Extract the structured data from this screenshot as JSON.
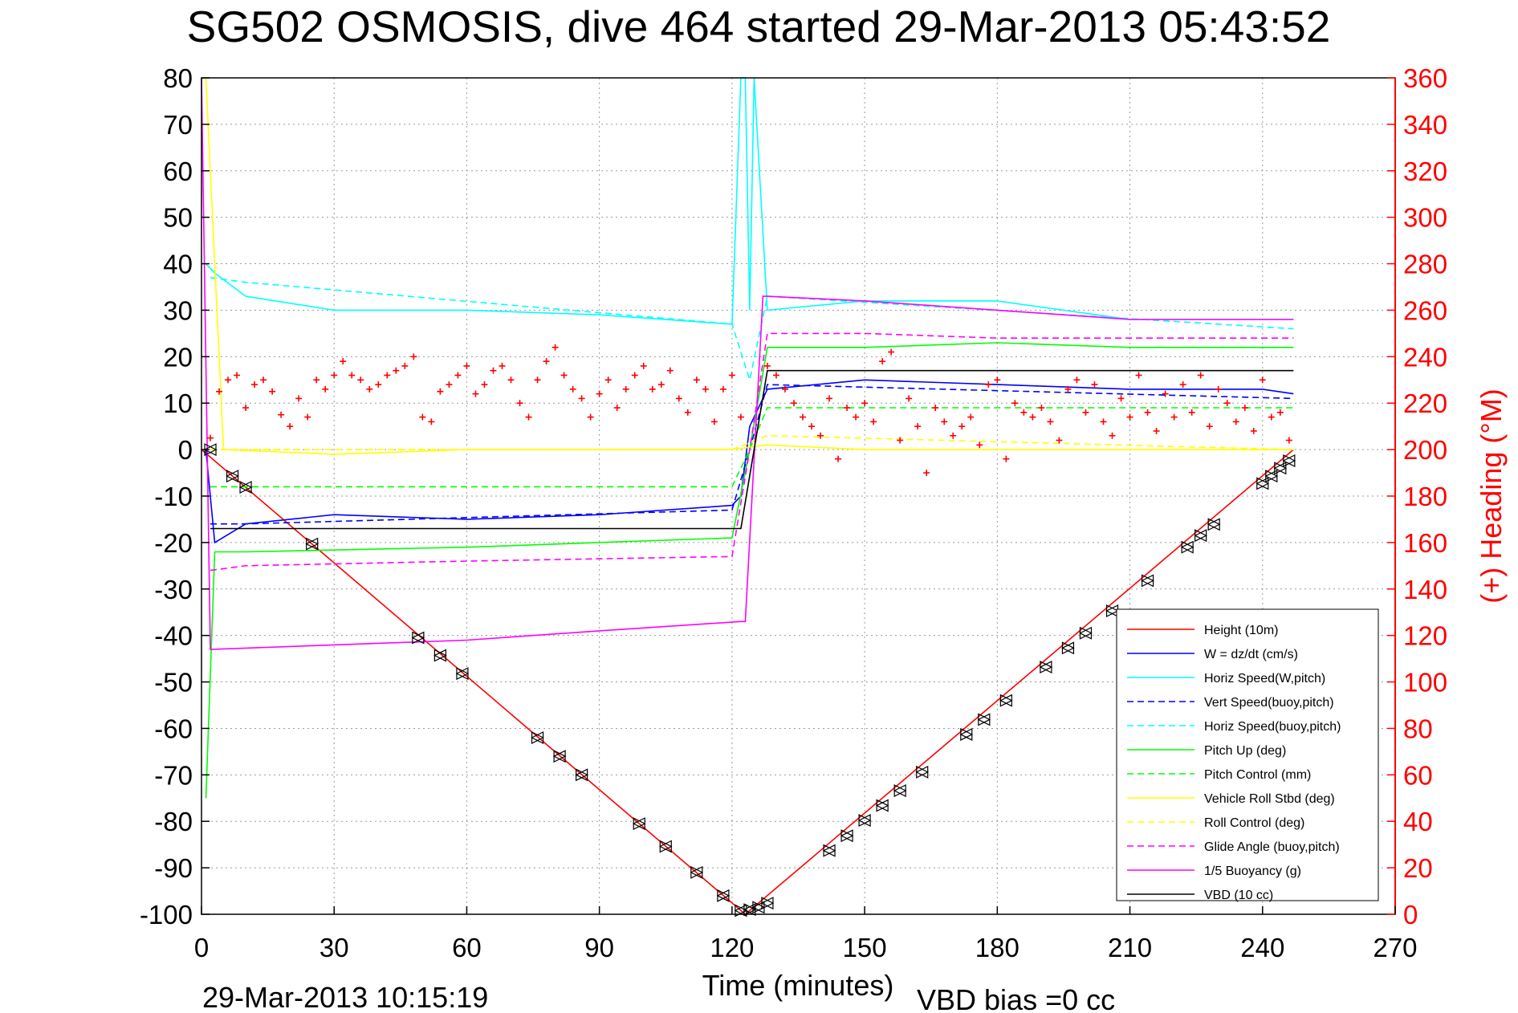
{
  "colors": {
    "height": "#ff0000",
    "w": "#0000ff",
    "horiz_speed": "#00ffff",
    "pitch": "#00ff00",
    "roll": "#ffff00",
    "glide": "#ff00ff",
    "buoyancy": "#ff00ff",
    "vbd": "#000000",
    "heading": "#ff0000",
    "marker": "#000000"
  },
  "chart_data": {
    "type": "line",
    "title": "SG502 OSMOSIS, dive 464 started 29-Mar-2013 05:43:52",
    "xlabel": "Time (minutes)",
    "ylabel": "",
    "ylabel_right": "(+) Heading (°M)",
    "footer_left": "29-Mar-2013 10:15:19",
    "footer_right": "VBD bias =0 cc",
    "xlim": [
      0,
      270
    ],
    "ylim": [
      -100,
      80
    ],
    "ylim_right": [
      0,
      360
    ],
    "x_ticks": [
      "0",
      "30",
      "60",
      "90",
      "120",
      "150",
      "180",
      "210",
      "240",
      "270"
    ],
    "y_ticks": [
      "80",
      "70",
      "60",
      "50",
      "40",
      "30",
      "20",
      "10",
      "0",
      "-10",
      "-20",
      "-30",
      "-40",
      "-50",
      "-60",
      "-70",
      "-80",
      "-90",
      "-100"
    ],
    "y_right_ticks": [
      "360",
      "340",
      "320",
      "300",
      "280",
      "260",
      "240",
      "220",
      "200",
      "180",
      "160",
      "140",
      "120",
      "100",
      "80",
      "60",
      "40",
      "20",
      "0"
    ],
    "grid": true,
    "legend_position": "bottom-right",
    "series": [
      {
        "name": "Height (10m)",
        "style": "solid",
        "color": "#ff0000",
        "x": [
          0,
          123,
          247
        ],
        "y": [
          0,
          -100,
          0
        ]
      },
      {
        "name": "W = dz/dt (cm/s)",
        "style": "solid",
        "color": "#0000ff",
        "x": [
          1,
          3,
          10,
          30,
          60,
          90,
          120,
          122,
          124,
          128,
          150,
          180,
          210,
          240,
          247
        ],
        "y": [
          0,
          -20,
          -16,
          -14,
          -15,
          -14,
          -12,
          -10,
          5,
          13,
          15,
          14,
          13,
          13,
          12
        ]
      },
      {
        "name": "Horiz Speed(W,pitch)",
        "style": "solid",
        "color": "#00ffff",
        "x": [
          1,
          3,
          10,
          30,
          60,
          90,
          120,
          122,
          123,
          124,
          125,
          128,
          150,
          180,
          210,
          240,
          247
        ],
        "y": [
          40,
          38,
          33,
          30,
          30,
          29,
          27,
          80,
          80,
          30,
          80,
          30,
          32,
          32,
          28,
          28,
          28
        ]
      },
      {
        "name": "Vert Speed(buoy,pitch)",
        "style": "dashed",
        "color": "#0000ff",
        "x": [
          2,
          10,
          120,
          124,
          128,
          247
        ],
        "y": [
          -16,
          -16,
          -13,
          0,
          14,
          11
        ]
      },
      {
        "name": "Horiz Speed(buoy,pitch)",
        "style": "dashed",
        "color": "#00ffff",
        "x": [
          2,
          10,
          120,
          124,
          128,
          247
        ],
        "y": [
          37,
          36,
          27,
          15,
          33,
          26
        ]
      },
      {
        "name": "Pitch Up (deg)",
        "style": "solid",
        "color": "#00ff00",
        "x": [
          1,
          3,
          10,
          60,
          120,
          124,
          128,
          150,
          180,
          210,
          247
        ],
        "y": [
          -75,
          -22,
          -22,
          -21,
          -19,
          0,
          22,
          22,
          23,
          22,
          22
        ]
      },
      {
        "name": "Pitch Control (mm)",
        "style": "dashed",
        "color": "#00ff00",
        "x": [
          2,
          10,
          120,
          124,
          128,
          247
        ],
        "y": [
          -8,
          -8,
          -8,
          0,
          9,
          9
        ]
      },
      {
        "name": "Vehicle Roll Stbd (deg)",
        "style": "solid",
        "color": "#ffff00",
        "x": [
          1,
          5,
          30,
          60,
          90,
          120,
          128,
          150,
          180,
          210,
          247
        ],
        "y": [
          80,
          0,
          -1,
          0,
          0,
          0,
          1,
          0,
          0,
          0,
          0
        ]
      },
      {
        "name": "Roll Control (deg)",
        "style": "dashed",
        "color": "#ffff00",
        "x": [
          2,
          10,
          120,
          128,
          247
        ],
        "y": [
          0,
          0,
          0,
          3,
          0
        ]
      },
      {
        "name": "Glide Angle (buoy,pitch)",
        "style": "dashed",
        "color": "#ff00ff",
        "x": [
          2,
          10,
          60,
          120,
          124,
          128,
          150,
          180,
          210,
          247
        ],
        "y": [
          -26,
          -25,
          -24,
          -23,
          0,
          25,
          25,
          24,
          24,
          24
        ]
      },
      {
        "name": "1/5 Buoyancy (g)",
        "style": "solid",
        "color": "#ff00ff",
        "x": [
          0,
          2,
          60,
          90,
          122,
          123,
          127,
          128,
          150,
          180,
          210,
          247
        ],
        "y": [
          80,
          -43,
          -41,
          -39,
          -37,
          -37,
          33,
          33,
          32,
          30,
          28,
          28
        ]
      },
      {
        "name": "VBD (10 cc)",
        "style": "solid",
        "color": "#000000",
        "x": [
          2,
          10,
          122,
          128,
          247
        ],
        "y": [
          -17,
          -17,
          -17,
          17,
          17
        ]
      }
    ],
    "heading_points": {
      "name": "Heading",
      "axis": "right",
      "marker": "+",
      "color": "#ff0000",
      "x": [
        2,
        4,
        6,
        8,
        10,
        12,
        14,
        16,
        18,
        20,
        22,
        24,
        26,
        28,
        30,
        32,
        34,
        36,
        38,
        40,
        42,
        44,
        46,
        48,
        50,
        52,
        54,
        56,
        58,
        60,
        62,
        64,
        66,
        68,
        70,
        72,
        74,
        76,
        78,
        80,
        82,
        84,
        86,
        88,
        90,
        92,
        94,
        96,
        98,
        100,
        102,
        104,
        106,
        108,
        110,
        112,
        114,
        116,
        118,
        120,
        122,
        128,
        130,
        132,
        134,
        136,
        138,
        140,
        142,
        144,
        146,
        148,
        150,
        152,
        154,
        156,
        158,
        160,
        162,
        164,
        166,
        168,
        170,
        172,
        174,
        176,
        178,
        180,
        182,
        184,
        186,
        188,
        190,
        192,
        194,
        196,
        198,
        200,
        202,
        204,
        206,
        208,
        210,
        212,
        214,
        216,
        218,
        220,
        222,
        224,
        226,
        228,
        230,
        232,
        234,
        236,
        238,
        240,
        242,
        244,
        246
      ],
      "y": [
        205,
        225,
        230,
        232,
        218,
        228,
        230,
        225,
        215,
        210,
        222,
        214,
        230,
        226,
        232,
        238,
        232,
        230,
        226,
        228,
        232,
        234,
        236,
        240,
        214,
        212,
        225,
        228,
        232,
        236,
        224,
        228,
        234,
        236,
        230,
        220,
        214,
        230,
        238,
        244,
        232,
        226,
        222,
        214,
        224,
        230,
        218,
        226,
        232,
        236,
        226,
        228,
        234,
        222,
        216,
        230,
        226,
        212,
        226,
        232,
        214,
        236,
        232,
        226,
        220,
        214,
        210,
        206,
        222,
        196,
        218,
        214,
        220,
        212,
        238,
        242,
        204,
        222,
        210,
        190,
        218,
        212,
        206,
        210,
        214,
        202,
        228,
        230,
        196,
        220,
        216,
        214,
        218,
        212,
        204,
        226,
        230,
        216,
        228,
        212,
        206,
        222,
        214,
        232,
        216,
        208,
        224,
        214,
        228,
        216,
        232,
        210,
        226,
        220,
        212,
        218,
        208,
        230,
        214,
        216,
        204
      ]
    },
    "height_markers": {
      "name": "Height markers",
      "marker": "triangle",
      "color": "#000000",
      "x": [
        2,
        7,
        10,
        25,
        49,
        54,
        59,
        76,
        81,
        86,
        99,
        105,
        112,
        118,
        122,
        124,
        126,
        128,
        142,
        146,
        150,
        154,
        158,
        163,
        173,
        177,
        182,
        191,
        196,
        200,
        206,
        214,
        223,
        226,
        229,
        240,
        242,
        244,
        246
      ],
      "y": [
        0,
        -5.7,
        -8.1,
        -20.3,
        -40.5,
        -44.3,
        -48.2,
        -62,
        -66,
        -70,
        -80.5,
        -85.4,
        -91,
        -96,
        -99.2,
        -99,
        -98.5,
        -97.6,
        -86.3,
        -83.1,
        -79.8,
        -76.6,
        -73.4,
        -69.4,
        -61.3,
        -58.1,
        -54,
        -46.8,
        -42.7,
        -39.5,
        -34.7,
        -28.2,
        -21,
        -18.5,
        -16.1,
        -7.3,
        -5.7,
        -4,
        -2.4
      ]
    }
  }
}
